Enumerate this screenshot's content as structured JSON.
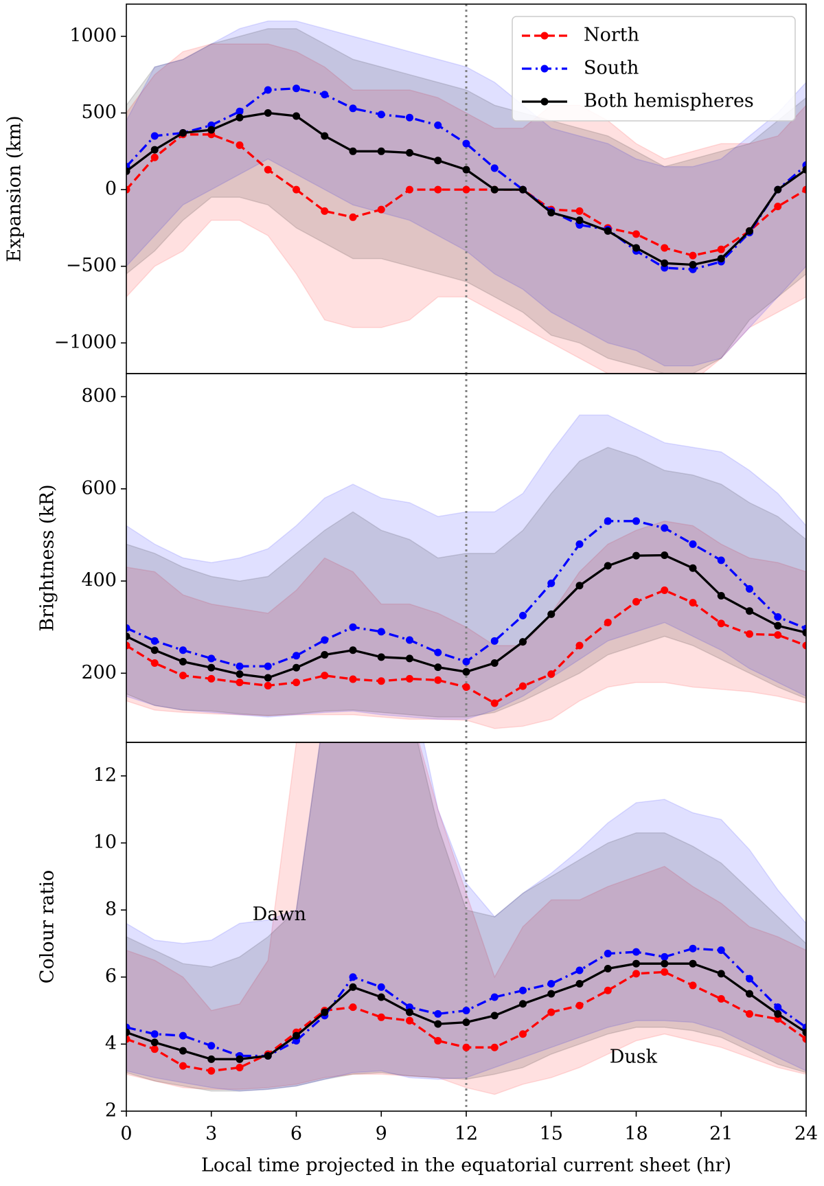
{
  "chart_data": [
    {
      "type": "line",
      "ylabel": "Expansion (km)",
      "x": [
        0,
        1,
        2,
        3,
        4,
        5,
        6,
        7,
        8,
        9,
        10,
        11,
        12,
        13,
        14,
        15,
        16,
        17,
        18,
        19,
        20,
        21,
        22,
        23,
        24
      ],
      "xlim": [
        0,
        24
      ],
      "ylim": [
        -1200,
        1210
      ],
      "yticks": [
        {
          "value": -1000,
          "label": "−1000"
        },
        {
          "value": -500,
          "label": "−500"
        },
        0,
        500,
        1000
      ],
      "vline": 12,
      "legend": "upper right",
      "series": [
        {
          "name": "North",
          "color": "#ff0000",
          "style": "dashed",
          "values": [
            0,
            210,
            360,
            360,
            290,
            130,
            0,
            -140,
            -180,
            -130,
            0,
            0,
            0,
            0,
            0,
            -130,
            -140,
            -250,
            -290,
            -380,
            -430,
            -390,
            -270,
            -110,
            0
          ],
          "band_upper": [
            500,
            750,
            900,
            950,
            950,
            950,
            900,
            800,
            650,
            650,
            650,
            600,
            500,
            400,
            400,
            550,
            550,
            450,
            300,
            200,
            250,
            300,
            300,
            350,
            550
          ],
          "band_lower": [
            -700,
            -500,
            -400,
            -200,
            -200,
            -300,
            -550,
            -850,
            -900,
            -900,
            -850,
            -700,
            -700,
            -800,
            -900,
            -1000,
            -1100,
            -1200,
            -1250,
            -1250,
            -1250,
            -1100,
            -900,
            -800,
            -700
          ]
        },
        {
          "name": "South",
          "color": "#0000ff",
          "style": "dashdot",
          "values": [
            150,
            350,
            370,
            420,
            510,
            650,
            660,
            620,
            530,
            490,
            470,
            420,
            300,
            140,
            0,
            -140,
            -230,
            -260,
            -400,
            -510,
            -520,
            -470,
            -280,
            0,
            160
          ],
          "band_upper": [
            450,
            800,
            850,
            950,
            1050,
            1100,
            1100,
            1050,
            1000,
            950,
            900,
            850,
            800,
            700,
            550,
            400,
            350,
            300,
            200,
            150,
            150,
            200,
            350,
            500,
            700
          ],
          "band_lower": [
            -500,
            -300,
            -100,
            0,
            100,
            200,
            100,
            0,
            -100,
            -150,
            -200,
            -300,
            -400,
            -550,
            -650,
            -800,
            -900,
            -1000,
            -1050,
            -1150,
            -1150,
            -1100,
            -900,
            -700,
            -500
          ]
        },
        {
          "name": "Both hemispheres",
          "color": "#000000",
          "style": "solid",
          "values": [
            120,
            260,
            370,
            390,
            470,
            500,
            480,
            350,
            250,
            250,
            240,
            190,
            130,
            0,
            0,
            -150,
            -200,
            -270,
            -380,
            -480,
            -490,
            -450,
            -270,
            0,
            130
          ],
          "band_upper": [
            550,
            800,
            850,
            950,
            1000,
            1050,
            1050,
            950,
            850,
            800,
            750,
            700,
            650,
            550,
            500,
            450,
            400,
            350,
            250,
            150,
            200,
            250,
            300,
            450,
            600
          ],
          "band_lower": [
            -550,
            -400,
            -200,
            -50,
            -50,
            -100,
            -250,
            -350,
            -450,
            -450,
            -500,
            -550,
            -600,
            -700,
            -800,
            -950,
            -1000,
            -1100,
            -1150,
            -1200,
            -1200,
            -1100,
            -850,
            -700,
            -550
          ]
        }
      ]
    },
    {
      "type": "line",
      "ylabel": "Brightness (kR)",
      "x": [
        0,
        1,
        2,
        3,
        4,
        5,
        6,
        7,
        8,
        9,
        10,
        11,
        12,
        13,
        14,
        15,
        16,
        17,
        18,
        19,
        20,
        21,
        22,
        23,
        24
      ],
      "xlim": [
        0,
        24
      ],
      "ylim": [
        50,
        850
      ],
      "yticks": [
        200,
        400,
        600,
        800
      ],
      "vline": 12,
      "series": [
        {
          "color": "#ff0000",
          "style": "dashed",
          "values": [
            260,
            222,
            195,
            188,
            180,
            173,
            180,
            195,
            187,
            183,
            188,
            185,
            170,
            135,
            172,
            198,
            260,
            310,
            355,
            380,
            353,
            308,
            285,
            283,
            260
          ],
          "band_upper": [
            430,
            420,
            370,
            350,
            340,
            330,
            380,
            450,
            420,
            350,
            350,
            330,
            300,
            260,
            260,
            330,
            420,
            480,
            510,
            530,
            520,
            480,
            450,
            440,
            420
          ],
          "band_lower": [
            140,
            120,
            115,
            112,
            110,
            108,
            110,
            110,
            110,
            105,
            100,
            100,
            98,
            80,
            85,
            100,
            140,
            170,
            180,
            180,
            170,
            165,
            160,
            150,
            135
          ]
        },
        {
          "color": "#0000ff",
          "style": "dashdot",
          "values": [
            298,
            270,
            250,
            232,
            215,
            215,
            238,
            272,
            300,
            290,
            272,
            245,
            225,
            270,
            325,
            395,
            480,
            530,
            530,
            515,
            480,
            445,
            383,
            322,
            297
          ],
          "band_upper": [
            520,
            480,
            450,
            440,
            450,
            470,
            520,
            580,
            610,
            580,
            570,
            540,
            550,
            550,
            590,
            680,
            760,
            760,
            730,
            700,
            690,
            680,
            640,
            590,
            520
          ],
          "band_lower": [
            150,
            130,
            120,
            115,
            110,
            105,
            110,
            115,
            118,
            110,
            105,
            100,
            100,
            120,
            150,
            190,
            230,
            270,
            290,
            310,
            280,
            250,
            210,
            180,
            150
          ]
        },
        {
          "color": "#000000",
          "style": "solid",
          "values": [
            280,
            250,
            225,
            212,
            198,
            190,
            212,
            240,
            250,
            235,
            232,
            213,
            203,
            222,
            268,
            328,
            390,
            433,
            455,
            456,
            428,
            368,
            335,
            303,
            288
          ],
          "band_upper": [
            480,
            460,
            430,
            410,
            400,
            410,
            460,
            510,
            550,
            510,
            490,
            450,
            460,
            460,
            510,
            590,
            660,
            690,
            670,
            640,
            630,
            610,
            570,
            540,
            490
          ],
          "band_lower": [
            155,
            130,
            120,
            118,
            112,
            108,
            112,
            118,
            120,
            115,
            110,
            105,
            105,
            115,
            140,
            170,
            200,
            240,
            260,
            280,
            260,
            230,
            200,
            170,
            145
          ]
        }
      ]
    },
    {
      "type": "line",
      "ylabel": "Colour ratio",
      "xlabel": "Local time projected in the equatorial current sheet (hr)",
      "x": [
        0,
        1,
        2,
        3,
        4,
        5,
        6,
        7,
        8,
        9,
        10,
        11,
        12,
        13,
        14,
        15,
        16,
        17,
        18,
        19,
        20,
        21,
        22,
        23,
        24
      ],
      "xlim": [
        0,
        24
      ],
      "xticks": [
        0,
        3,
        6,
        9,
        12,
        15,
        18,
        21,
        24
      ],
      "ylim": [
        2,
        13
      ],
      "yticks": [
        2,
        4,
        6,
        8,
        10,
        12
      ],
      "vline": 12,
      "annotations": [
        "Dawn",
        "Dusk"
      ],
      "series": [
        {
          "color": "#ff0000",
          "style": "dashed",
          "values": [
            4.15,
            3.85,
            3.35,
            3.2,
            3.3,
            3.7,
            4.35,
            5.0,
            5.1,
            4.8,
            4.7,
            4.1,
            3.9,
            3.9,
            4.3,
            4.95,
            5.15,
            5.6,
            6.1,
            6.15,
            5.75,
            5.35,
            4.9,
            4.75,
            4.15
          ],
          "band_upper": [
            6.8,
            6.5,
            6.0,
            5.0,
            5.2,
            6.5,
            13,
            20,
            20,
            18,
            14,
            11,
            8.5,
            6.0,
            7.5,
            8.3,
            8.3,
            8.7,
            9.0,
            9.3,
            8.7,
            8.2,
            7.5,
            7.2,
            6.8
          ],
          "band_lower": [
            3.1,
            2.9,
            2.7,
            2.65,
            2.65,
            2.7,
            2.8,
            3.0,
            3.1,
            3.1,
            3.05,
            3.0,
            2.7,
            2.5,
            2.8,
            3.0,
            3.3,
            3.7,
            4.1,
            4.3,
            4.1,
            3.9,
            3.6,
            3.3,
            3.1
          ]
        },
        {
          "color": "#0000ff",
          "style": "dashdot",
          "values": [
            4.5,
            4.3,
            4.25,
            3.95,
            3.65,
            3.65,
            4.1,
            4.85,
            6.0,
            5.7,
            5.1,
            4.9,
            5.0,
            5.4,
            5.6,
            5.8,
            6.2,
            6.7,
            6.75,
            6.6,
            6.85,
            6.8,
            5.95,
            5.1,
            4.5
          ],
          "band_upper": [
            7.6,
            7.1,
            7.0,
            7.1,
            7.6,
            7.7,
            8.0,
            14,
            20,
            20,
            15,
            11,
            8.8,
            7.8,
            8.5,
            9.1,
            9.8,
            10.6,
            11.2,
            11.3,
            10.9,
            10.7,
            9.8,
            8.6,
            7.6
          ],
          "band_lower": [
            3.2,
            3.0,
            2.85,
            2.7,
            2.6,
            2.65,
            2.75,
            2.95,
            3.15,
            3.2,
            3.0,
            2.95,
            3.0,
            3.3,
            3.6,
            3.9,
            4.2,
            4.5,
            4.7,
            4.7,
            4.65,
            4.4,
            4.0,
            3.6,
            3.2
          ]
        },
        {
          "color": "#000000",
          "style": "solid",
          "values": [
            4.35,
            4.05,
            3.8,
            3.55,
            3.55,
            3.65,
            4.25,
            4.95,
            5.7,
            5.4,
            4.95,
            4.6,
            4.65,
            4.85,
            5.2,
            5.5,
            5.8,
            6.25,
            6.4,
            6.4,
            6.4,
            6.1,
            5.5,
            4.9,
            4.35
          ],
          "band_upper": [
            7.2,
            6.8,
            6.4,
            6.3,
            6.6,
            7.2,
            8,
            14,
            20,
            19,
            14,
            10.5,
            8.0,
            7.8,
            8.5,
            9.0,
            9.5,
            10,
            10.3,
            10.3,
            9.9,
            9.4,
            8.6,
            7.8,
            7.0
          ],
          "band_lower": [
            3.15,
            2.9,
            2.75,
            2.6,
            2.6,
            2.65,
            2.75,
            2.95,
            3.1,
            3.15,
            3.05,
            3.0,
            2.95,
            3.1,
            3.3,
            3.7,
            4.0,
            4.3,
            4.5,
            4.5,
            4.4,
            4.2,
            3.8,
            3.4,
            3.15
          ]
        }
      ]
    }
  ]
}
